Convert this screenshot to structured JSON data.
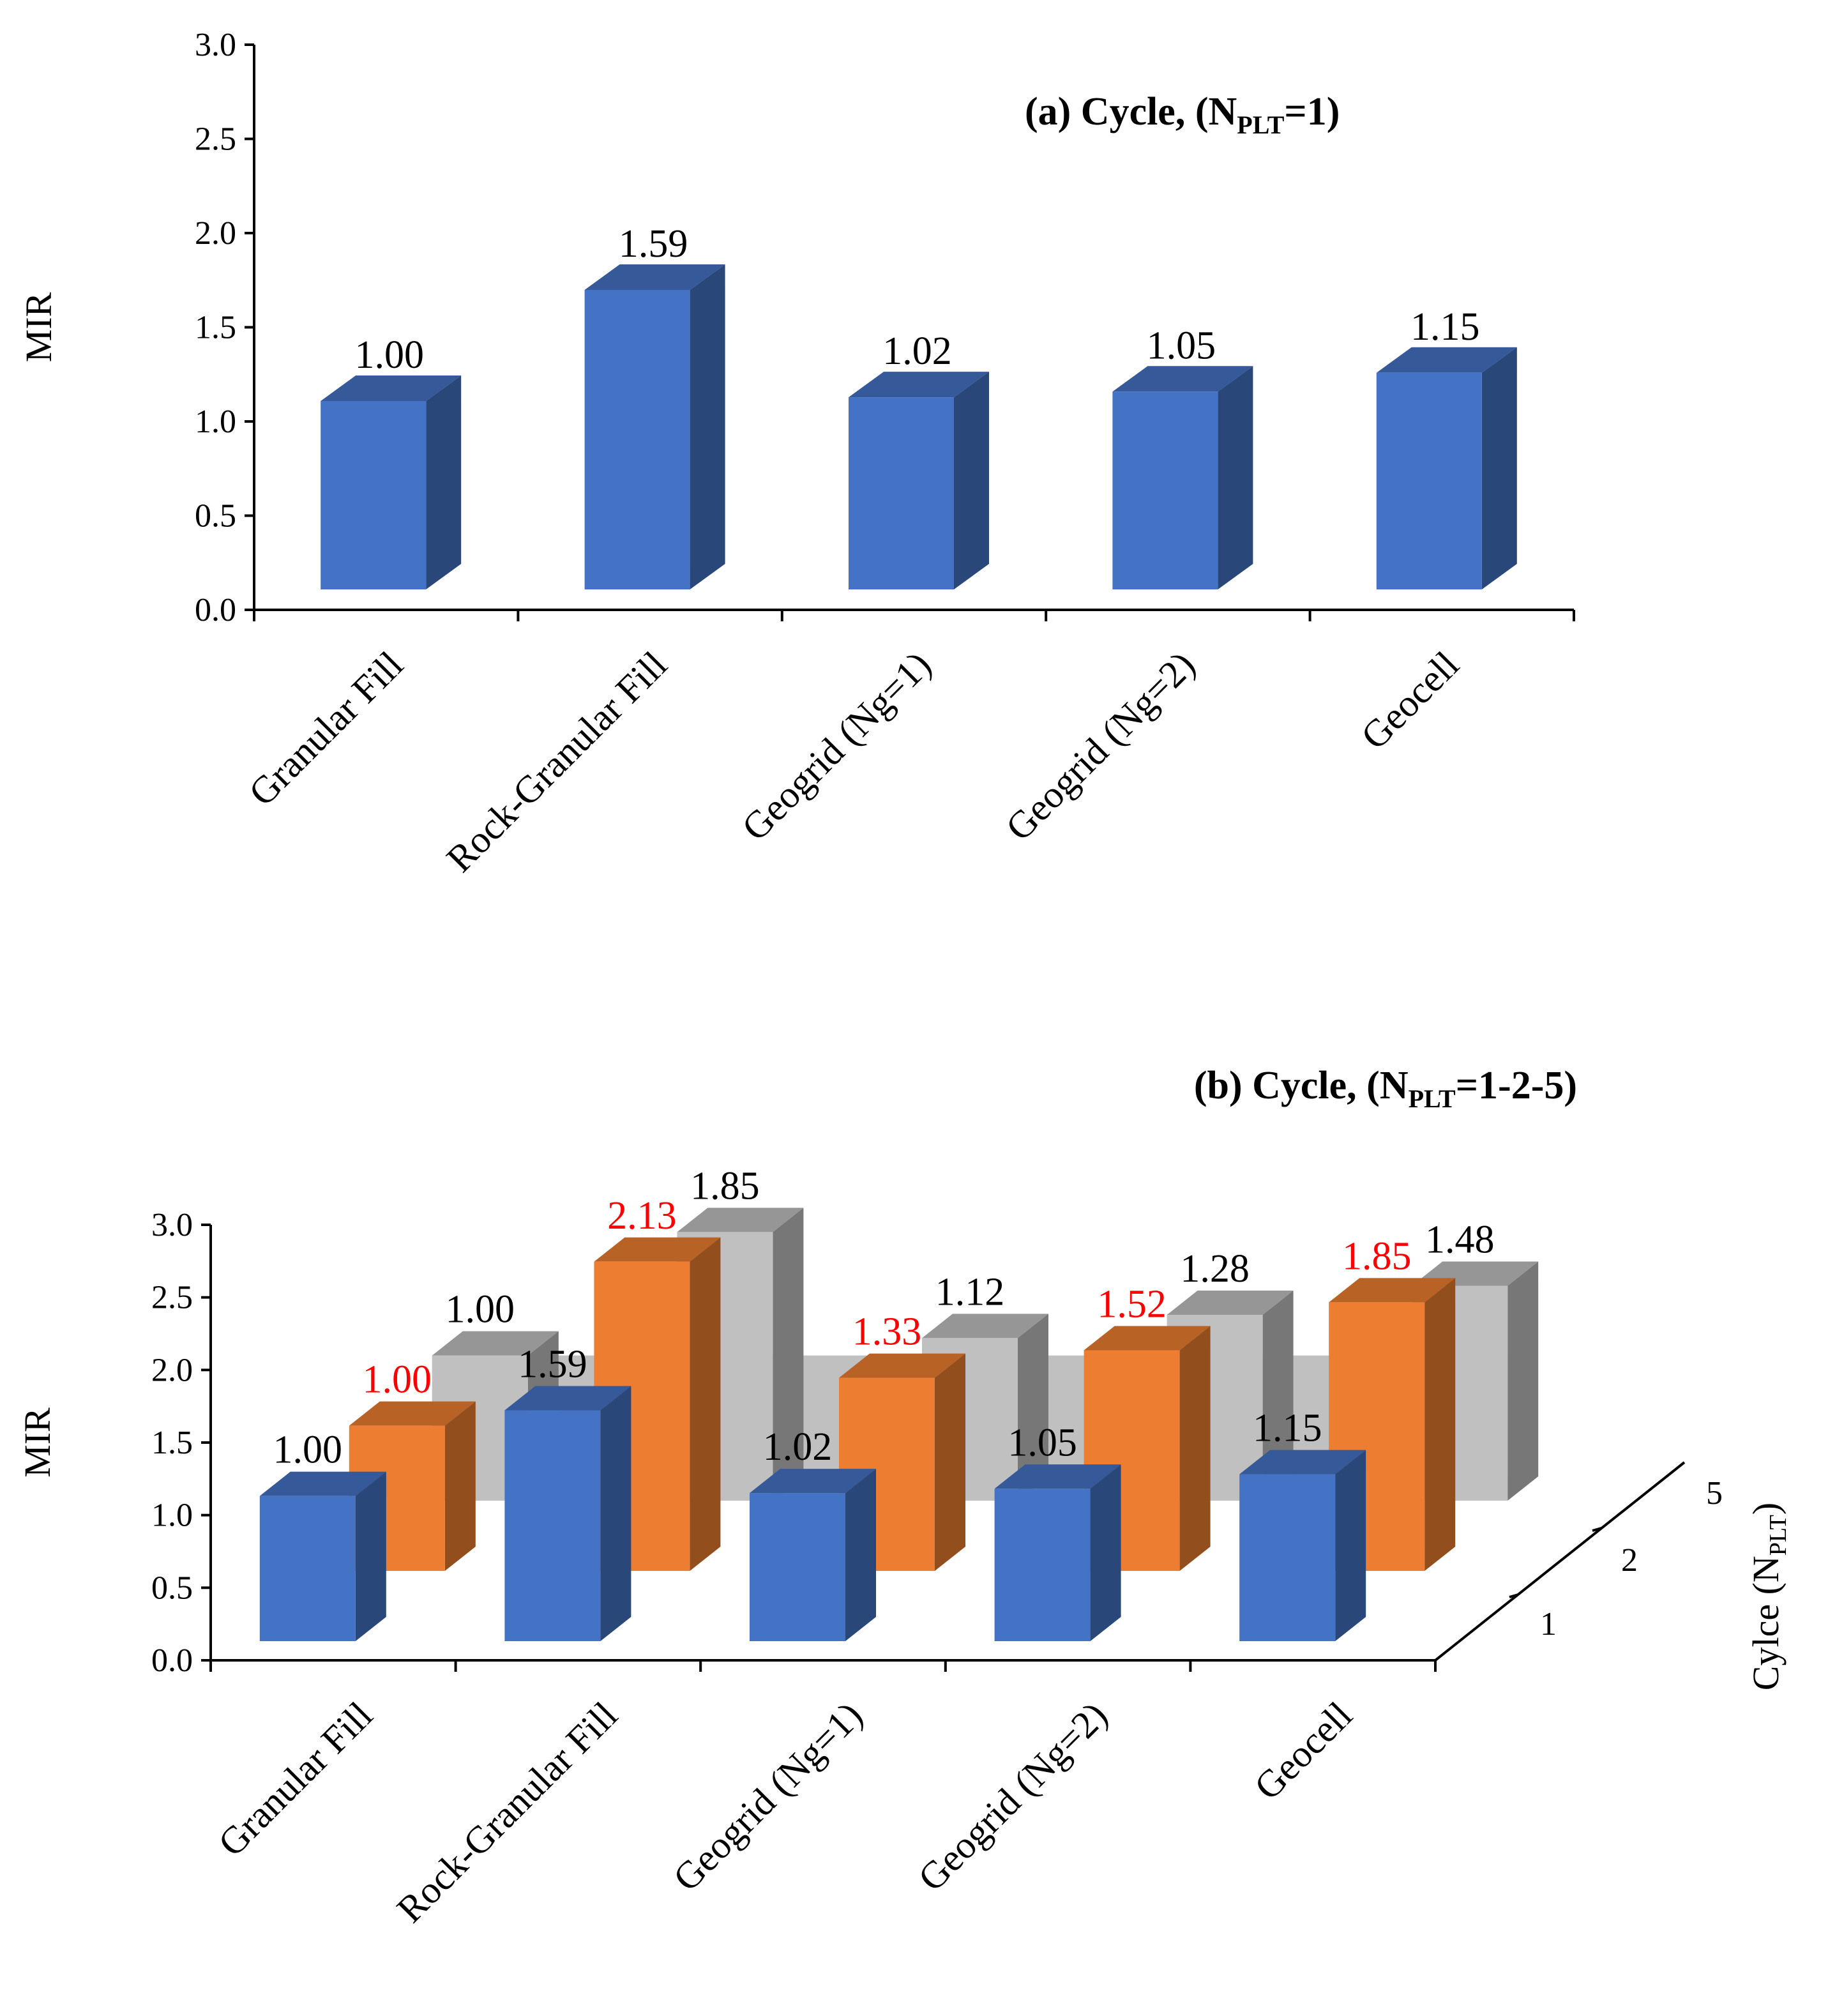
{
  "chart_data": [
    {
      "type": "bar",
      "title": "(a) Cycle, (N",
      "title_sub": "PLT",
      "title_tail": "=1)",
      "ylabel": "MIR",
      "ylim": [
        0,
        3
      ],
      "yticks": [
        "0.0",
        "0.5",
        "1.0",
        "1.5",
        "2.0",
        "2.5",
        "3.0"
      ],
      "categories": [
        "Granular Fill",
        "Rock-Granular Fill",
        "Geogrid (Ng=1)",
        "Geogrid (Ng=2)",
        "Geocell"
      ],
      "values": [
        1.0,
        1.59,
        1.02,
        1.05,
        1.15
      ],
      "data_labels": [
        "1.00",
        "1.59",
        "1.02",
        "1.05",
        "1.15"
      ],
      "bar_color": "#4472C4"
    },
    {
      "type": "bar",
      "style": "3d-depth",
      "title": "(b) Cycle, (N",
      "title_sub": "PLT",
      "title_tail": "=1-2-5)",
      "ylabel": "MIR",
      "ylim": [
        0,
        3
      ],
      "yticks": [
        "0.0",
        "0.5",
        "1.0",
        "1.5",
        "2.0",
        "2.5",
        "3.0"
      ],
      "categories": [
        "Granular Fill",
        "Rock-Granular Fill",
        "Geogrid (Ng=1)",
        "Geogrid (Ng=2)",
        "Geocell"
      ],
      "depth_axis_title": "Cylce (N",
      "depth_axis_sub": "PLT",
      "depth_axis_tail": ")",
      "series": [
        {
          "name": "1",
          "values": [
            1.0,
            1.59,
            1.02,
            1.05,
            1.15
          ],
          "labels": [
            "1.00",
            "1.59",
            "1.02",
            "1.05",
            "1.15"
          ],
          "color": "#4472C4",
          "label_color": "#000000"
        },
        {
          "name": "2",
          "values": [
            1.0,
            2.13,
            1.33,
            1.52,
            1.85
          ],
          "labels": [
            "1.00",
            "2.13",
            "1.33",
            "1.52",
            "1.85"
          ],
          "color": "#ED7D31",
          "label_color": "#FF0000"
        },
        {
          "name": "5",
          "values": [
            1.0,
            1.85,
            1.12,
            1.28,
            1.48
          ],
          "labels": [
            "1.00",
            "1.85",
            "1.12",
            "1.28",
            "1.48"
          ],
          "color": "#C0C0C0",
          "label_color": "#000000"
        }
      ]
    }
  ]
}
